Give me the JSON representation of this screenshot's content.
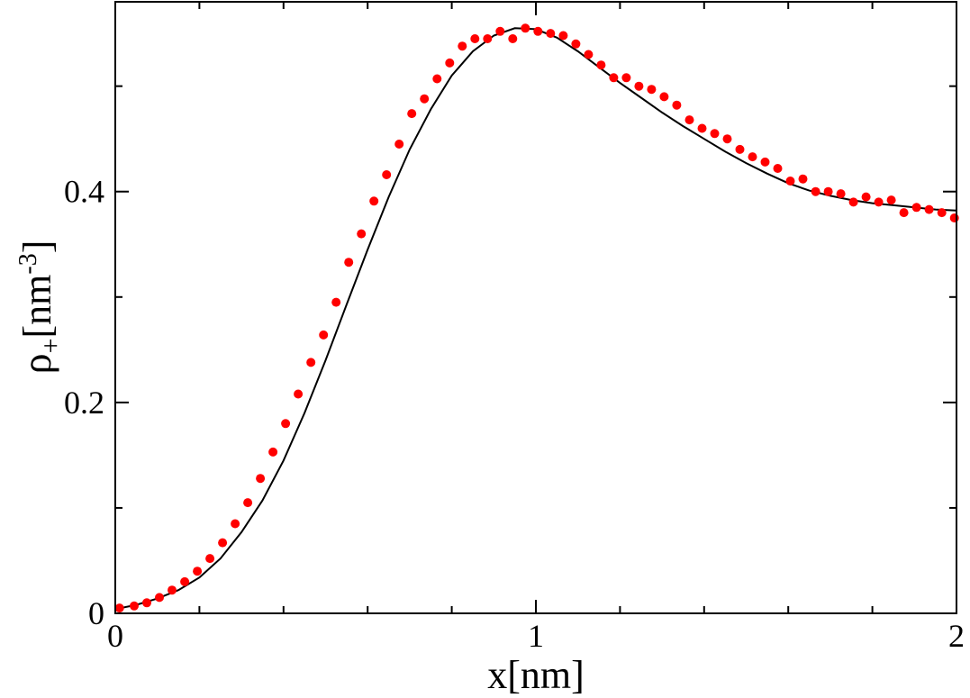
{
  "chart_data": {
    "type": "scatter",
    "xlabel": "x[nm]",
    "ylabel": {
      "base": "ρ",
      "sub": "+",
      "unit_open": "[nm",
      "sup": "-3",
      "unit_close": "]"
    },
    "xlim": [
      0,
      2
    ],
    "ylim": [
      0,
      0.58
    ],
    "x_ticks": [
      0,
      1,
      2
    ],
    "x_tick_labels": [
      "0",
      "1",
      "2"
    ],
    "x_minor_step": 0.2,
    "y_ticks": [
      0,
      0.2,
      0.4
    ],
    "y_tick_labels": [
      "0",
      "0.2",
      "0.4"
    ],
    "y_minor_step": 0.1,
    "grid": false,
    "series": [
      {
        "kind": "line",
        "color": "#000000",
        "x": [
          0.0,
          0.05,
          0.1,
          0.15,
          0.2,
          0.25,
          0.3,
          0.35,
          0.4,
          0.45,
          0.5,
          0.55,
          0.6,
          0.65,
          0.7,
          0.75,
          0.8,
          0.85,
          0.9,
          0.95,
          1.0,
          1.05,
          1.1,
          1.15,
          1.2,
          1.25,
          1.3,
          1.35,
          1.4,
          1.45,
          1.5,
          1.55,
          1.6,
          1.65,
          1.7,
          1.75,
          1.8,
          1.85,
          1.9,
          1.95,
          2.0
        ],
        "y": [
          0.004,
          0.008,
          0.014,
          0.022,
          0.034,
          0.052,
          0.077,
          0.107,
          0.145,
          0.19,
          0.24,
          0.293,
          0.345,
          0.395,
          0.44,
          0.478,
          0.51,
          0.533,
          0.548,
          0.555,
          0.554,
          0.546,
          0.533,
          0.518,
          0.503,
          0.489,
          0.475,
          0.462,
          0.45,
          0.438,
          0.427,
          0.417,
          0.408,
          0.401,
          0.396,
          0.392,
          0.389,
          0.387,
          0.385,
          0.383,
          0.382
        ]
      },
      {
        "kind": "points",
        "color": "#ff0000",
        "x": [
          0.01,
          0.045,
          0.075,
          0.105,
          0.135,
          0.165,
          0.195,
          0.225,
          0.255,
          0.285,
          0.315,
          0.345,
          0.375,
          0.405,
          0.435,
          0.465,
          0.495,
          0.525,
          0.555,
          0.585,
          0.615,
          0.645,
          0.675,
          0.705,
          0.735,
          0.765,
          0.795,
          0.825,
          0.855,
          0.885,
          0.915,
          0.945,
          0.975,
          1.005,
          1.035,
          1.065,
          1.095,
          1.125,
          1.155,
          1.185,
          1.215,
          1.245,
          1.275,
          1.305,
          1.335,
          1.365,
          1.395,
          1.425,
          1.455,
          1.485,
          1.515,
          1.545,
          1.575,
          1.605,
          1.635,
          1.665,
          1.695,
          1.725,
          1.755,
          1.785,
          1.815,
          1.845,
          1.875,
          1.905,
          1.935,
          1.965,
          1.995
        ],
        "y": [
          0.005,
          0.007,
          0.01,
          0.015,
          0.022,
          0.03,
          0.04,
          0.052,
          0.067,
          0.085,
          0.105,
          0.128,
          0.153,
          0.18,
          0.208,
          0.238,
          0.264,
          0.295,
          0.333,
          0.36,
          0.391,
          0.416,
          0.445,
          0.474,
          0.488,
          0.507,
          0.522,
          0.538,
          0.545,
          0.545,
          0.552,
          0.545,
          0.555,
          0.552,
          0.55,
          0.548,
          0.54,
          0.53,
          0.52,
          0.508,
          0.508,
          0.5,
          0.497,
          0.49,
          0.482,
          0.468,
          0.46,
          0.455,
          0.45,
          0.44,
          0.433,
          0.428,
          0.422,
          0.41,
          0.412,
          0.4,
          0.4,
          0.398,
          0.39,
          0.395,
          0.39,
          0.392,
          0.38,
          0.385,
          0.383,
          0.38,
          0.375
        ]
      }
    ]
  }
}
